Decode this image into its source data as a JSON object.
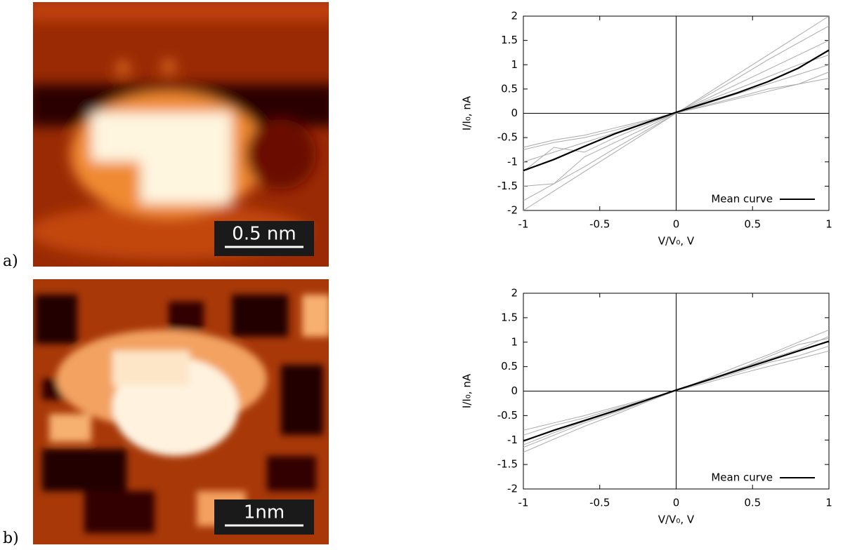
{
  "panels": [
    {
      "label": "a)",
      "scale_bar": "0.5 nm"
    },
    {
      "label": "b)",
      "scale_bar": "1nm"
    }
  ],
  "chart_data": [
    {
      "type": "line",
      "x_label": "V/V₀, V",
      "y_label": "I/I₀, nA",
      "legend": "lower right",
      "x": [
        -1,
        -0.8,
        -0.6,
        -0.4,
        -0.2,
        0,
        0.2,
        0.4,
        0.6,
        0.8,
        1
      ],
      "xlim": [
        -1,
        1
      ],
      "ylim": [
        -2,
        2
      ],
      "xticks": [
        -1,
        -0.5,
        0,
        0.5,
        1
      ],
      "yticks": [
        -2,
        -1.5,
        -1,
        -0.5,
        0,
        0.5,
        1,
        1.5,
        2
      ],
      "series": [
        {
          "color": "#aaaaaa",
          "values": [
            -2,
            -1.6,
            -1.2,
            -0.8,
            -0.4,
            0,
            0.4,
            0.8,
            1.2,
            1.6,
            2
          ]
        },
        {
          "color": "#aaaaaa",
          "values": [
            -1.8,
            -1.45,
            -1.1,
            -0.72,
            -0.36,
            0,
            0.36,
            0.72,
            1.1,
            1.45,
            1.8
          ]
        },
        {
          "color": "#aaaaaa",
          "values": [
            -1.5,
            -1.45,
            -0.9,
            -0.6,
            -0.3,
            0.01,
            0.3,
            0.6,
            0.9,
            1.2,
            1.5
          ]
        },
        {
          "color": "#aaaaaa",
          "values": [
            -1.0,
            -0.8,
            -0.6,
            -0.4,
            -0.2,
            0,
            0.2,
            0.4,
            0.6,
            0.8,
            1.0
          ]
        },
        {
          "color": "#aaaaaa",
          "values": [
            -0.75,
            -0.6,
            -0.5,
            -0.35,
            -0.17,
            0,
            0.17,
            0.33,
            0.5,
            0.6,
            0.72
          ]
        },
        {
          "color": "#aaaaaa",
          "values": [
            -0.7,
            -0.55,
            -0.45,
            -0.3,
            -0.15,
            0.01,
            0.15,
            0.3,
            0.45,
            0.6,
            0.85
          ]
        },
        {
          "color": "#aaaaaa",
          "values": [
            -1.2,
            -0.7,
            -0.8,
            -0.5,
            -0.24,
            0,
            0.26,
            0.5,
            0.75,
            1.0,
            1.2
          ]
        },
        {
          "name": "Mean curve",
          "color": "#000000",
          "values": [
            -1.18,
            -0.95,
            -0.68,
            -0.42,
            -0.2,
            0.02,
            0.22,
            0.42,
            0.65,
            0.93,
            1.3
          ]
        }
      ]
    },
    {
      "type": "line",
      "x_label": "V/V₀, V",
      "y_label": "I/I₀, nA",
      "legend": "lower right",
      "x": [
        -1,
        -0.8,
        -0.6,
        -0.4,
        -0.2,
        0,
        0.2,
        0.4,
        0.6,
        0.8,
        1
      ],
      "xlim": [
        -1,
        1
      ],
      "ylim": [
        -2,
        2
      ],
      "xticks": [
        -1,
        -0.5,
        0,
        0.5,
        1
      ],
      "yticks": [
        -2,
        -1.5,
        -1,
        -0.5,
        0,
        0.5,
        1,
        1.5,
        2
      ],
      "series": [
        {
          "color": "#aaaaaa",
          "values": [
            -1.25,
            -0.98,
            -0.72,
            -0.48,
            -0.23,
            0.01,
            0.25,
            0.5,
            0.74,
            1.0,
            1.25
          ]
        },
        {
          "color": "#aaaaaa",
          "values": [
            -0.8,
            -0.65,
            -0.5,
            -0.33,
            -0.16,
            0.01,
            0.17,
            0.34,
            0.5,
            0.66,
            0.82
          ]
        },
        {
          "color": "#aaaaaa",
          "values": [
            -1.1,
            -0.85,
            -0.62,
            -0.42,
            -0.2,
            0.02,
            0.22,
            0.45,
            0.65,
            0.85,
            1.12
          ]
        },
        {
          "color": "#aaaaaa",
          "values": [
            -0.9,
            -0.7,
            -0.55,
            -0.36,
            -0.18,
            0.01,
            0.2,
            0.38,
            0.58,
            0.72,
            0.92
          ]
        },
        {
          "color": "#aaaaaa",
          "values": [
            -1.15,
            -0.9,
            -0.65,
            -0.44,
            -0.21,
            0.02,
            0.23,
            0.43,
            0.7,
            0.95,
            1.08
          ]
        },
        {
          "name": "Mean curve",
          "color": "#000000",
          "values": [
            -1.02,
            -0.8,
            -0.6,
            -0.4,
            -0.19,
            0.02,
            0.22,
            0.42,
            0.62,
            0.82,
            1.02
          ]
        }
      ]
    }
  ]
}
